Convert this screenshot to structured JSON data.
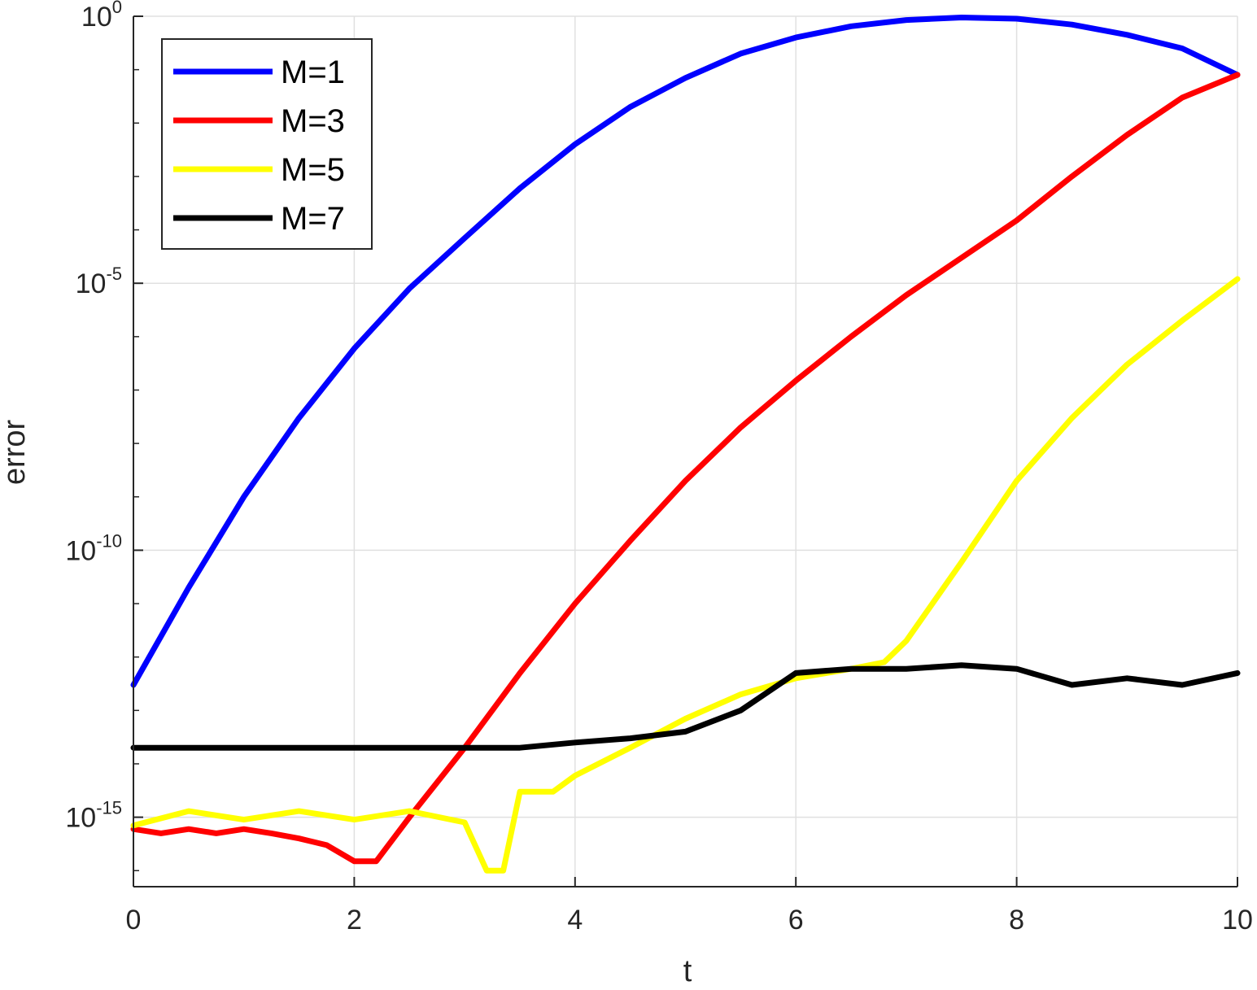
{
  "chart_data": {
    "type": "line",
    "xlabel": "t",
    "ylabel": "error",
    "xlim": [
      0,
      10
    ],
    "ylim": [
      5e-17,
      1.0
    ],
    "yscale": "log",
    "grid": true,
    "legend_position": "top-left",
    "xticks": [
      0,
      2,
      4,
      6,
      8,
      10
    ],
    "x_tick_labels": [
      "0",
      "2",
      "4",
      "6",
      "8",
      "10"
    ],
    "yticks": [
      1e-15,
      1e-10,
      1e-05,
      1
    ],
    "y_tick_labels": [
      {
        "base": "10",
        "exp": "-15"
      },
      {
        "base": "10",
        "exp": "-10"
      },
      {
        "base": "10",
        "exp": "-5"
      },
      {
        "base": "10",
        "exp": "0"
      }
    ],
    "series": [
      {
        "name": "M=1",
        "color": "#0000ff",
        "x": [
          0,
          0.5,
          1,
          1.5,
          2,
          2.5,
          3,
          3.5,
          4,
          4.5,
          5,
          5.5,
          6,
          6.5,
          7,
          7.5,
          8,
          8.5,
          9,
          9.5,
          10
        ],
        "y": [
          3e-13,
          2e-11,
          1e-09,
          3e-08,
          6e-07,
          8e-06,
          7e-05,
          0.0006,
          0.004,
          0.02,
          0.07,
          0.2,
          0.4,
          0.65,
          0.85,
          0.95,
          0.9,
          0.7,
          0.45,
          0.25,
          0.08
        ]
      },
      {
        "name": "M=3",
        "color": "#ff0000",
        "x": [
          0,
          0.25,
          0.5,
          0.75,
          1,
          1.25,
          1.5,
          1.75,
          2,
          2.2,
          2.5,
          3,
          3.5,
          4,
          4.5,
          5,
          5.5,
          6,
          6.5,
          7,
          7.5,
          8,
          8.5,
          9,
          9.5,
          10
        ],
        "y": [
          6e-16,
          5e-16,
          6e-16,
          5e-16,
          6e-16,
          5e-16,
          4e-16,
          3e-16,
          1.5e-16,
          1.5e-16,
          1e-15,
          2e-14,
          5e-13,
          1e-11,
          1.5e-10,
          2e-09,
          2e-08,
          1.5e-07,
          1e-06,
          6e-06,
          3e-05,
          0.00015,
          0.001,
          0.006,
          0.03,
          0.08
        ]
      },
      {
        "name": "M=5",
        "color": "#ffff00",
        "x": [
          0,
          0.5,
          1,
          1.5,
          2,
          2.5,
          3,
          3.2,
          3.35,
          3.5,
          3.8,
          4,
          4.5,
          5,
          5.5,
          6,
          6.5,
          6.8,
          7,
          7.5,
          8,
          8.5,
          9,
          9.5,
          10
        ],
        "y": [
          7e-16,
          1.3e-15,
          9e-16,
          1.3e-15,
          9e-16,
          1.3e-15,
          8e-16,
          1e-16,
          1e-16,
          3e-15,
          3e-15,
          6e-15,
          2e-14,
          7e-14,
          2e-13,
          4e-13,
          6e-13,
          8e-13,
          2e-12,
          6e-11,
          2e-09,
          3e-08,
          3e-07,
          2e-06,
          1.2e-05
        ]
      },
      {
        "name": "M=7",
        "color": "#000000",
        "x": [
          0,
          0.5,
          1,
          1.5,
          2,
          2.5,
          3,
          3.5,
          4,
          4.5,
          5,
          5.5,
          6,
          6.5,
          7,
          7.5,
          8,
          8.5,
          9,
          9.5,
          10
        ],
        "y": [
          2e-14,
          2e-14,
          2e-14,
          2e-14,
          2e-14,
          2e-14,
          2e-14,
          2e-14,
          2.5e-14,
          3e-14,
          4e-14,
          1e-13,
          5e-13,
          6e-13,
          6e-13,
          7e-13,
          6e-13,
          3e-13,
          4e-13,
          3e-13,
          5e-13
        ]
      }
    ]
  }
}
